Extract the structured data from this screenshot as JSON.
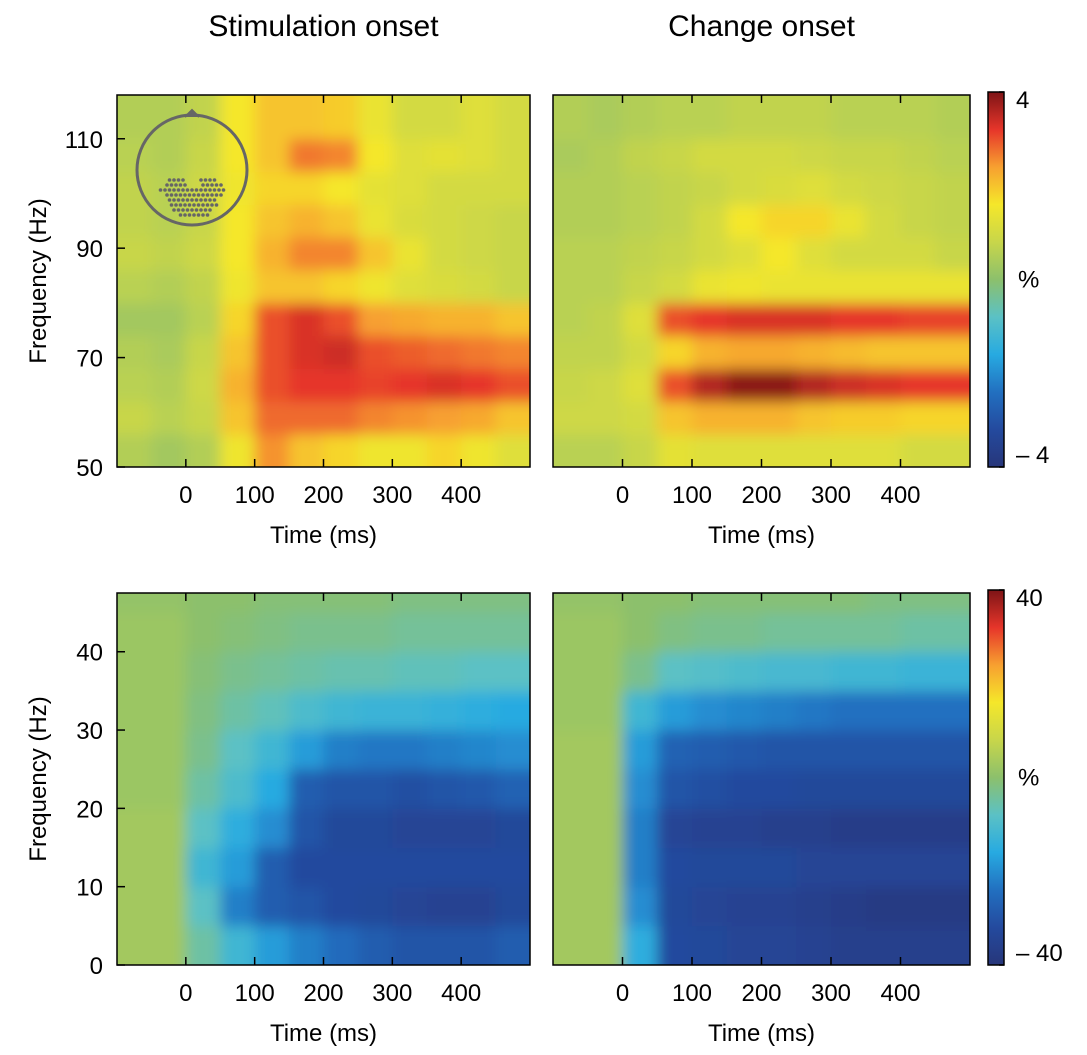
{
  "chart_data": [
    {
      "type": "heatmap",
      "title": "Stimulation onset",
      "xlabel": "Time (ms)",
      "ylabel": "Frequency (Hz)",
      "xlim": [
        -100,
        500
      ],
      "ylim": [
        50,
        118
      ],
      "xticks": [
        0,
        100,
        200,
        300,
        400
      ],
      "yticks": [
        50,
        70,
        90,
        110
      ],
      "clim": [
        -4,
        4
      ],
      "colormap": [
        "#27367a",
        "#244a9e",
        "#2270c0",
        "#27aae1",
        "#5bc1c5",
        "#8cc06c",
        "#c8d64a",
        "#f5e72a",
        "#f7a030",
        "#e6352a",
        "#7e1416"
      ],
      "x": [
        -75,
        -25,
        25,
        75,
        125,
        175,
        225,
        275,
        325,
        375,
        425,
        475
      ],
      "y": [
        53,
        59,
        65,
        71,
        77,
        83,
        89,
        95,
        101,
        107,
        113
      ],
      "z": [
        [
          0.5,
          0.3,
          0.5,
          1.5,
          2.5,
          2.0,
          1.8,
          1.5,
          1.5,
          1.8,
          1.5,
          1.2
        ],
        [
          0.8,
          0.6,
          0.8,
          2.0,
          2.8,
          2.8,
          2.8,
          2.6,
          2.5,
          2.4,
          2.3,
          2.0
        ],
        [
          0.6,
          0.5,
          0.9,
          2.2,
          3.0,
          3.2,
          3.2,
          3.1,
          3.2,
          3.3,
          3.2,
          3.0
        ],
        [
          0.5,
          0.4,
          0.8,
          2.0,
          3.0,
          3.3,
          3.4,
          3.0,
          2.9,
          2.8,
          2.7,
          2.6
        ],
        [
          0.3,
          0.3,
          0.6,
          1.8,
          3.0,
          3.3,
          3.0,
          2.4,
          2.3,
          2.2,
          2.2,
          2.0
        ],
        [
          0.6,
          0.5,
          0.7,
          1.5,
          2.0,
          2.0,
          1.8,
          1.5,
          1.2,
          1.1,
          1.0,
          0.8
        ],
        [
          0.8,
          0.7,
          0.9,
          1.6,
          2.2,
          2.6,
          2.6,
          2.0,
          1.4,
          1.0,
          0.9,
          0.8
        ],
        [
          0.7,
          0.6,
          0.8,
          1.6,
          2.0,
          2.2,
          2.0,
          1.4,
          1.1,
          1.0,
          0.9,
          0.8
        ],
        [
          0.7,
          0.6,
          0.9,
          1.5,
          1.8,
          1.8,
          1.6,
          1.3,
          1.2,
          1.0,
          1.0,
          1.0
        ],
        [
          0.6,
          0.5,
          0.8,
          1.6,
          2.0,
          2.7,
          2.6,
          1.6,
          1.2,
          1.3,
          1.2,
          1.0
        ],
        [
          0.5,
          0.5,
          0.7,
          1.6,
          2.0,
          2.0,
          1.9,
          1.4,
          1.0,
          1.0,
          1.2,
          1.0
        ]
      ]
    },
    {
      "type": "heatmap",
      "title": "Change onset",
      "xlabel": "Time (ms)",
      "xlim": [
        -100,
        500
      ],
      "ylim": [
        50,
        118
      ],
      "xticks": [
        0,
        100,
        200,
        300,
        400
      ],
      "clim": [
        -4,
        4
      ],
      "colormap": [
        "#27367a",
        "#244a9e",
        "#2270c0",
        "#27aae1",
        "#5bc1c5",
        "#8cc06c",
        "#c8d64a",
        "#f5e72a",
        "#f7a030",
        "#e6352a",
        "#7e1416"
      ],
      "colorbar": {
        "label": "%",
        "ticks": [
          {
            "value": 4,
            "label": "4"
          },
          {
            "value": -4,
            "label": "– 4"
          }
        ]
      },
      "x": [
        -75,
        -25,
        25,
        75,
        125,
        175,
        225,
        275,
        325,
        375,
        425,
        475
      ],
      "y": [
        53,
        59,
        65,
        71,
        77,
        83,
        89,
        95,
        101,
        107,
        113
      ],
      "z": [
        [
          0.6,
          0.6,
          0.8,
          1.3,
          1.2,
          1.2,
          1.2,
          1.2,
          1.2,
          1.2,
          1.0,
          1.0
        ],
        [
          0.9,
          0.9,
          1.0,
          2.0,
          2.2,
          2.2,
          2.2,
          2.0,
          1.9,
          1.9,
          1.8,
          1.8
        ],
        [
          0.8,
          0.9,
          1.2,
          3.0,
          3.6,
          3.9,
          3.9,
          3.6,
          3.4,
          3.3,
          3.2,
          3.2
        ],
        [
          0.7,
          0.7,
          1.0,
          1.8,
          2.2,
          2.3,
          2.3,
          2.2,
          2.1,
          2.0,
          2.0,
          2.0
        ],
        [
          0.6,
          0.7,
          1.2,
          3.0,
          3.2,
          3.3,
          3.3,
          3.3,
          3.2,
          3.2,
          3.1,
          3.1
        ],
        [
          0.6,
          0.6,
          0.8,
          1.0,
          1.4,
          1.5,
          1.4,
          1.4,
          1.4,
          1.4,
          1.4,
          1.4
        ],
        [
          0.6,
          0.6,
          0.7,
          0.8,
          1.0,
          1.2,
          1.6,
          1.2,
          1.0,
          1.0,
          1.0,
          0.8
        ],
        [
          0.5,
          0.5,
          0.6,
          0.7,
          1.0,
          1.6,
          1.8,
          1.8,
          1.4,
          1.0,
          0.8,
          0.7
        ],
        [
          0.5,
          0.5,
          0.6,
          0.7,
          0.8,
          1.0,
          1.1,
          1.2,
          1.0,
          0.9,
          0.8,
          0.7
        ],
        [
          0.4,
          0.5,
          0.7,
          0.8,
          1.0,
          1.0,
          1.0,
          0.9,
          0.8,
          0.8,
          0.7,
          0.6
        ],
        [
          0.5,
          0.4,
          0.5,
          0.6,
          0.6,
          0.7,
          0.7,
          0.7,
          0.6,
          0.6,
          0.6,
          0.5
        ]
      ]
    },
    {
      "type": "heatmap",
      "xlabel": "Time (ms)",
      "ylabel": "Frequency (Hz)",
      "xlim": [
        -100,
        500
      ],
      "ylim": [
        0,
        47.5
      ],
      "xticks": [
        0,
        100,
        200,
        300,
        400
      ],
      "yticks": [
        0,
        10,
        20,
        30,
        40
      ],
      "clim": [
        -40,
        40
      ],
      "colormap": [
        "#27367a",
        "#244a9e",
        "#2270c0",
        "#27aae1",
        "#5bc1c5",
        "#8cc06c",
        "#c8d64a",
        "#f5e72a",
        "#f7a030",
        "#e6352a",
        "#7e1416"
      ],
      "x": [
        -75,
        -25,
        25,
        75,
        125,
        175,
        225,
        275,
        325,
        375,
        425,
        475
      ],
      "y": [
        2.5,
        7.5,
        12.5,
        17.5,
        22.5,
        27.5,
        32.5,
        37.5,
        42.5,
        47.5
      ],
      "z": [
        [
          3,
          3,
          -5,
          -12,
          -18,
          -22,
          -25,
          -28,
          -30,
          -30,
          -30,
          -28
        ],
        [
          3,
          3,
          -8,
          -22,
          -28,
          -30,
          -32,
          -33,
          -34,
          -35,
          -35,
          -33
        ],
        [
          3,
          3,
          -12,
          -18,
          -28,
          -32,
          -32,
          -32,
          -32,
          -32,
          -32,
          -32
        ],
        [
          3,
          3,
          -8,
          -15,
          -20,
          -30,
          -33,
          -33,
          -34,
          -34,
          -34,
          -33
        ],
        [
          2,
          2,
          -5,
          -10,
          -16,
          -28,
          -30,
          -30,
          -31,
          -30,
          -29,
          -27
        ],
        [
          2,
          2,
          -3,
          -8,
          -12,
          -18,
          -22,
          -23,
          -23,
          -22,
          -21,
          -20
        ],
        [
          2,
          2,
          -2,
          -5,
          -7,
          -10,
          -12,
          -13,
          -13,
          -14,
          -15,
          -16
        ],
        [
          2,
          2,
          -1,
          -3,
          -4,
          -5,
          -6,
          -6,
          -7,
          -7,
          -8,
          -8
        ],
        [
          2,
          2,
          0,
          -1,
          -2,
          -3,
          -3,
          -3,
          -4,
          -4,
          -4,
          -4
        ],
        [
          1,
          1,
          0,
          0,
          -1,
          -1,
          -1,
          -1,
          -2,
          -2,
          -2,
          -2
        ]
      ]
    },
    {
      "type": "heatmap",
      "xlabel": "Time (ms)",
      "xlim": [
        -100,
        500
      ],
      "ylim": [
        0,
        47.5
      ],
      "xticks": [
        0,
        100,
        200,
        300,
        400
      ],
      "clim": [
        -40,
        40
      ],
      "colormap": [
        "#27367a",
        "#244a9e",
        "#2270c0",
        "#27aae1",
        "#5bc1c5",
        "#8cc06c",
        "#c8d64a",
        "#f5e72a",
        "#f7a030",
        "#e6352a",
        "#7e1416"
      ],
      "colorbar": {
        "label": "%",
        "ticks": [
          {
            "value": 40,
            "label": "40"
          },
          {
            "value": -40,
            "label": "– 40"
          }
        ]
      },
      "x": [
        -75,
        -25,
        25,
        75,
        125,
        175,
        225,
        275,
        325,
        375,
        425,
        475
      ],
      "y": [
        2.5,
        7.5,
        12.5,
        17.5,
        22.5,
        27.5,
        32.5,
        37.5,
        42.5,
        47.5
      ],
      "z": [
        [
          3,
          3,
          -15,
          -32,
          -33,
          -34,
          -34,
          -35,
          -36,
          -36,
          -36,
          -36
        ],
        [
          3,
          3,
          -20,
          -33,
          -34,
          -35,
          -35,
          -36,
          -37,
          -38,
          -38,
          -38
        ],
        [
          3,
          3,
          -22,
          -32,
          -33,
          -33,
          -33,
          -34,
          -34,
          -34,
          -34,
          -34
        ],
        [
          3,
          3,
          -22,
          -34,
          -35,
          -35,
          -36,
          -36,
          -37,
          -37,
          -37,
          -37
        ],
        [
          3,
          3,
          -20,
          -30,
          -31,
          -32,
          -32,
          -33,
          -33,
          -33,
          -33,
          -33
        ],
        [
          3,
          3,
          -18,
          -27,
          -28,
          -29,
          -30,
          -30,
          -30,
          -30,
          -30,
          -30
        ],
        [
          2,
          2,
          -12,
          -18,
          -20,
          -21,
          -22,
          -23,
          -24,
          -24,
          -24,
          -24
        ],
        [
          2,
          2,
          -3,
          -8,
          -9,
          -10,
          -11,
          -11,
          -12,
          -12,
          -13,
          -13
        ],
        [
          2,
          2,
          0,
          -2,
          -3,
          -3,
          -4,
          -4,
          -4,
          -4,
          -5,
          -5
        ],
        [
          1,
          1,
          0,
          0,
          -1,
          -1,
          -1,
          -1,
          -1,
          -2,
          -2,
          -2
        ]
      ]
    }
  ]
}
